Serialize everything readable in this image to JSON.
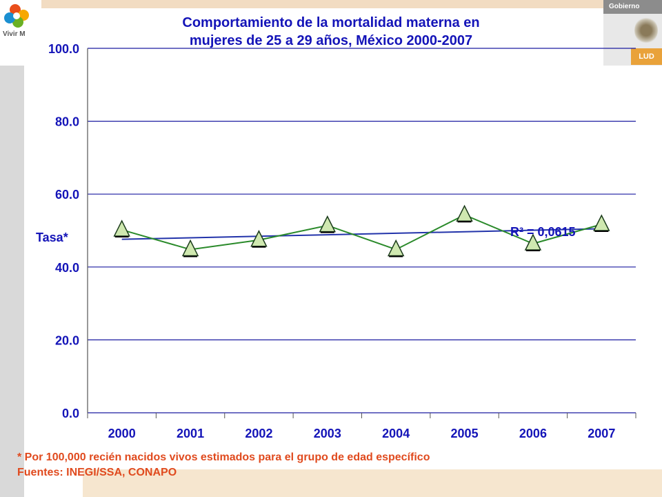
{
  "header": {
    "logo_text": "Vivir M",
    "gobierno_label": "Gobierno",
    "salud_label": "LUD"
  },
  "title_lines": [
    "Comportamiento de la mortalidad materna en",
    "mujeres de 25 a 29 años, México 2000-2007"
  ],
  "footnote": {
    "line1": "* Por 100,000 recién nacidos vivos estimados para el grupo de edad específico",
    "line2": "Fuentes: INEGI/SSA, CONAPO"
  },
  "colors": {
    "title": "#1414b8",
    "series": "#2a8a2a",
    "trend": "#2233aa",
    "marker_fill": "#cfe8b0",
    "axis_text": "#1414b8",
    "footnote": "#e04a1e"
  },
  "chart_data": {
    "type": "line",
    "title": "Comportamiento de la mortalidad materna en mujeres de 25 a 29 años, México 2000-2007",
    "ylabel": "Tasa*",
    "xlabel": "",
    "categories": [
      "2000",
      "2001",
      "2002",
      "2003",
      "2004",
      "2005",
      "2006",
      "2007"
    ],
    "series": [
      {
        "values": [
          50.2,
          44.8,
          47.4,
          51.4,
          44.8,
          54.3,
          46.4,
          51.7
        ]
      }
    ],
    "trendline": {
      "type": "linear",
      "start": 47.6,
      "end": 50.5,
      "r2_label": "R² = 0,0615"
    },
    "ylim": [
      0,
      100
    ],
    "yticks": [
      "0.0",
      "20.0",
      "40.0",
      "60.0",
      "80.0",
      "100.0"
    ],
    "grid": true
  }
}
